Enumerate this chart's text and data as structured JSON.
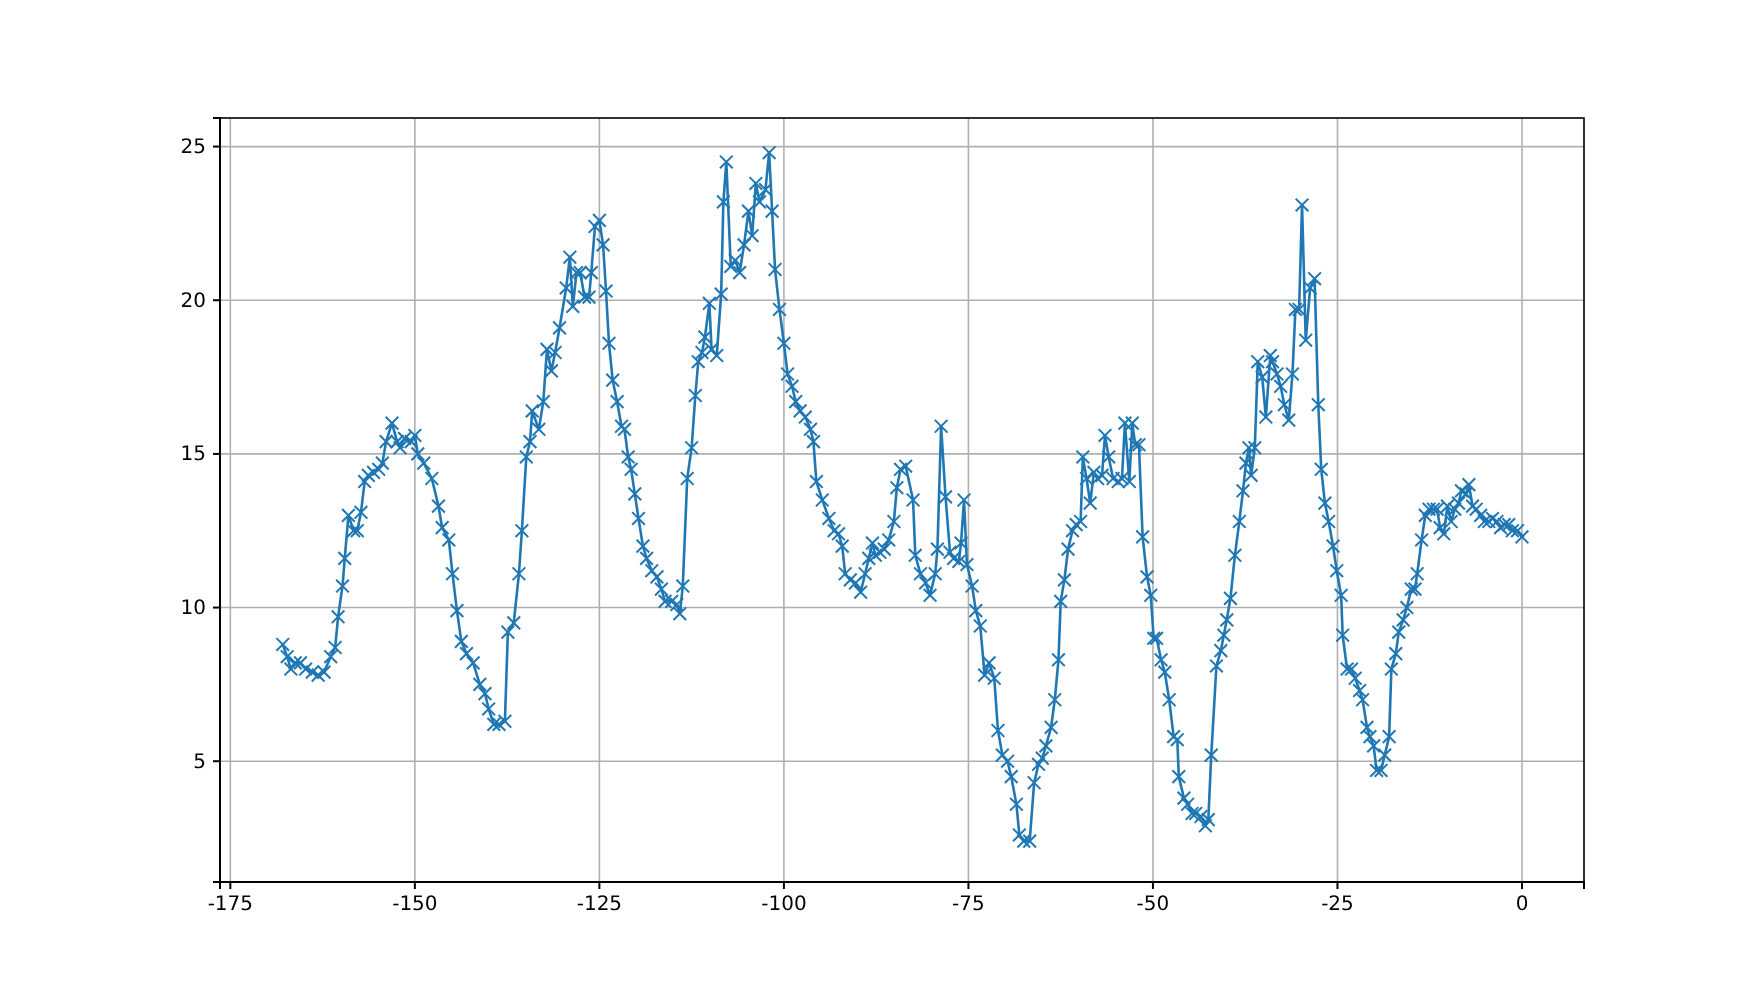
{
  "chart_data": {
    "type": "line",
    "xlim": [
      -176.4,
      8.4
    ],
    "ylim": [
      1.07,
      25.93
    ],
    "xticks": [
      -175,
      -150,
      -125,
      -100,
      -75,
      -50,
      -25,
      0
    ],
    "yticks": [
      5,
      10,
      15,
      20,
      25
    ],
    "grid": true,
    "marker": "cross",
    "line_style": "solid",
    "series": [
      {
        "color": "#1f77b4",
        "x": [
          -167.9,
          -167.3,
          -166.8,
          -166.2,
          -165.5,
          -164.8,
          -163.9,
          -163.1,
          -162.3,
          -161.4,
          -160.8,
          -160.4,
          -159.8,
          -159.5,
          -159.0,
          -158.3,
          -157.8,
          -157.3,
          -156.8,
          -156.3,
          -155.6,
          -154.9,
          -154.4,
          -153.9,
          -153.1,
          -152.4,
          -152.0,
          -151.4,
          -150.5,
          -150.0,
          -149.6,
          -148.8,
          -147.7,
          -146.8,
          -146.3,
          -145.4,
          -144.9,
          -144.3,
          -143.7,
          -143.0,
          -142.1,
          -141.2,
          -140.5,
          -140.0,
          -139.3,
          -138.6,
          -137.8,
          -137.4,
          -136.6,
          -135.9,
          -135.5,
          -134.9,
          -134.4,
          -134.1,
          -133.2,
          -132.6,
          -132.1,
          -131.5,
          -131.0,
          -130.4,
          -129.5,
          -129.0,
          -128.6,
          -128.1,
          -127.6,
          -127.0,
          -126.4,
          -126.1,
          -125.6,
          -125.0,
          -124.5,
          -124.1,
          -123.7,
          -123.2,
          -122.6,
          -122.0,
          -121.6,
          -121.1,
          -120.7,
          -120.2,
          -119.7,
          -119.1,
          -118.6,
          -117.9,
          -117.2,
          -116.6,
          -116.1,
          -115.2,
          -114.5,
          -114.1,
          -113.7,
          -113.1,
          -112.5,
          -112.0,
          -111.6,
          -111.1,
          -110.7,
          -110.1,
          -109.8,
          -109.1,
          -108.5,
          -108.2,
          -107.8,
          -107.2,
          -106.6,
          -106.0,
          -105.4,
          -104.8,
          -104.3,
          -103.8,
          -103.3,
          -102.5,
          -102.0,
          -101.6,
          -101.2,
          -100.6,
          -100.0,
          -99.5,
          -98.9,
          -98.4,
          -97.8,
          -97.1,
          -96.4,
          -96.0,
          -95.6,
          -94.8,
          -93.9,
          -93.2,
          -92.6,
          -92.1,
          -91.7,
          -91.0,
          -90.3,
          -89.6,
          -89.0,
          -88.5,
          -88.0,
          -87.6,
          -87.0,
          -86.4,
          -85.8,
          -85.1,
          -84.7,
          -84.2,
          -83.5,
          -82.5,
          -82.2,
          -81.5,
          -80.8,
          -80.2,
          -79.5,
          -79.2,
          -78.7,
          -78.1,
          -77.5,
          -77.0,
          -76.3,
          -76.0,
          -75.6,
          -75.2,
          -74.5,
          -74.0,
          -73.4,
          -72.8,
          -72.2,
          -71.5,
          -71.0,
          -70.4,
          -69.7,
          -69.2,
          -68.5,
          -68.1,
          -67.5,
          -66.7,
          -66.1,
          -65.5,
          -65.0,
          -64.5,
          -63.8,
          -63.3,
          -62.8,
          -62.5,
          -62.0,
          -61.5,
          -60.9,
          -60.4,
          -59.8,
          -59.5,
          -59.0,
          -58.5,
          -58.0,
          -57.5,
          -56.9,
          -56.5,
          -56.0,
          -55.4,
          -54.7,
          -54.2,
          -53.8,
          -53.2,
          -52.8,
          -52.4,
          -51.9,
          -51.4,
          -50.8,
          -50.3,
          -49.9,
          -49.5,
          -48.9,
          -48.4,
          -47.8,
          -47.2,
          -46.7,
          -46.5,
          -45.8,
          -45.3,
          -44.7,
          -44.2,
          -43.5,
          -42.9,
          -42.5,
          -42.1,
          -41.4,
          -40.8,
          -40.4,
          -40.0,
          -39.5,
          -38.9,
          -38.3,
          -37.8,
          -37.4,
          -37.0,
          -36.7,
          -36.2,
          -35.8,
          -35.2,
          -34.7,
          -34.1,
          -33.8,
          -33.2,
          -32.7,
          -32.2,
          -31.6,
          -31.1,
          -30.7,
          -30.2,
          -29.8,
          -29.3,
          -28.7,
          -28.1,
          -27.6,
          -27.2,
          -26.7,
          -26.2,
          -25.6,
          -25.1,
          -24.5,
          -24.3,
          -23.7,
          -23.1,
          -22.6,
          -22.0,
          -21.6,
          -21.0,
          -20.6,
          -20.1,
          -19.7,
          -19.1,
          -18.6,
          -18.0,
          -17.7,
          -17.1,
          -16.7,
          -16.1,
          -15.6,
          -15.0,
          -14.5,
          -14.2,
          -13.6,
          -13.1,
          -12.6,
          -12.0,
          -11.5,
          -11.1,
          -10.6,
          -10.1,
          -9.6,
          -9.1,
          -8.6,
          -8.2,
          -7.6,
          -7.2,
          -6.7,
          -6.2,
          -5.6,
          -5.1,
          -4.5,
          -4.0,
          -3.4,
          -2.9,
          -2.4,
          -1.8,
          -1.3,
          -0.6,
          0
        ],
        "values": [
          8.8,
          8.4,
          8.0,
          8.2,
          8.2,
          8.0,
          7.9,
          7.8,
          7.9,
          8.4,
          8.7,
          9.7,
          10.7,
          11.6,
          13.0,
          12.5,
          12.5,
          13.1,
          14.1,
          14.3,
          14.4,
          14.5,
          14.7,
          15.4,
          16.0,
          15.4,
          15.2,
          15.5,
          15.4,
          15.6,
          15.0,
          14.7,
          14.2,
          13.3,
          12.6,
          12.2,
          11.1,
          9.9,
          8.9,
          8.5,
          8.2,
          7.5,
          7.2,
          6.7,
          6.2,
          6.2,
          6.3,
          9.2,
          9.5,
          11.1,
          12.5,
          14.9,
          15.4,
          16.4,
          15.8,
          16.7,
          18.4,
          17.7,
          18.3,
          19.1,
          20.4,
          21.4,
          19.8,
          20.9,
          20.9,
          20.1,
          20.1,
          20.9,
          22.4,
          22.6,
          21.8,
          20.3,
          18.6,
          17.4,
          16.7,
          15.9,
          15.8,
          14.9,
          14.5,
          13.7,
          12.9,
          12.0,
          11.6,
          11.2,
          11.0,
          10.6,
          10.2,
          10.2,
          10.1,
          9.8,
          10.7,
          14.2,
          15.2,
          16.9,
          18.0,
          18.3,
          18.8,
          19.9,
          18.4,
          18.2,
          20.2,
          23.2,
          24.5,
          21.1,
          21.3,
          20.9,
          21.8,
          22.9,
          22.1,
          23.8,
          23.2,
          23.6,
          24.8,
          22.9,
          21.0,
          19.7,
          18.6,
          17.6,
          17.2,
          16.7,
          16.4,
          16.2,
          15.8,
          15.4,
          14.1,
          13.5,
          12.9,
          12.5,
          12.4,
          12.0,
          11.1,
          10.9,
          10.8,
          10.5,
          11.1,
          11.6,
          12.1,
          11.7,
          11.8,
          11.9,
          12.2,
          12.8,
          13.9,
          14.5,
          14.6,
          13.5,
          11.7,
          11.1,
          10.8,
          10.4,
          11.1,
          11.9,
          15.9,
          13.6,
          11.8,
          11.6,
          11.5,
          12.1,
          13.5,
          11.4,
          10.7,
          9.9,
          9.4,
          7.8,
          8.2,
          7.7,
          6.0,
          5.2,
          5.0,
          4.5,
          3.6,
          2.6,
          2.4,
          2.4,
          4.3,
          4.9,
          5.1,
          5.5,
          6.1,
          7.0,
          8.3,
          10.2,
          10.9,
          11.9,
          12.5,
          12.7,
          12.8,
          14.9,
          14.2,
          13.4,
          14.4,
          14.2,
          14.3,
          15.6,
          14.9,
          14.2,
          14.1,
          14.2,
          16.0,
          14.1,
          16.0,
          15.3,
          15.3,
          12.3,
          11.0,
          10.4,
          9.0,
          9.0,
          8.3,
          7.9,
          7.0,
          5.8,
          5.7,
          4.5,
          3.8,
          3.6,
          3.3,
          3.3,
          3.2,
          2.9,
          3.1,
          5.2,
          8.1,
          8.6,
          9.1,
          9.6,
          10.3,
          11.7,
          12.8,
          13.8,
          14.7,
          15.2,
          14.3,
          15.2,
          18.0,
          17.5,
          16.2,
          18.2,
          18.0,
          17.6,
          17.2,
          16.6,
          16.1,
          17.6,
          19.7,
          19.7,
          23.1,
          18.7,
          20.4,
          20.7,
          16.6,
          14.5,
          13.4,
          12.8,
          12.0,
          11.2,
          10.4,
          9.1,
          8.0,
          8.0,
          7.7,
          7.3,
          7.0,
          6.1,
          5.8,
          5.5,
          4.7,
          4.7,
          5.2,
          5.8,
          8.0,
          8.5,
          9.2,
          9.6,
          10.0,
          10.6,
          10.6,
          11.1,
          12.2,
          13.0,
          13.2,
          13.2,
          13.2,
          12.6,
          12.4,
          13.3,
          12.8,
          13.2,
          13.4,
          13.8,
          13.7,
          14.0,
          13.3,
          13.2,
          13.0,
          12.8,
          12.8,
          12.9,
          12.8,
          12.6,
          12.7,
          12.7,
          12.5,
          12.5,
          12.3
        ]
      }
    ]
  }
}
